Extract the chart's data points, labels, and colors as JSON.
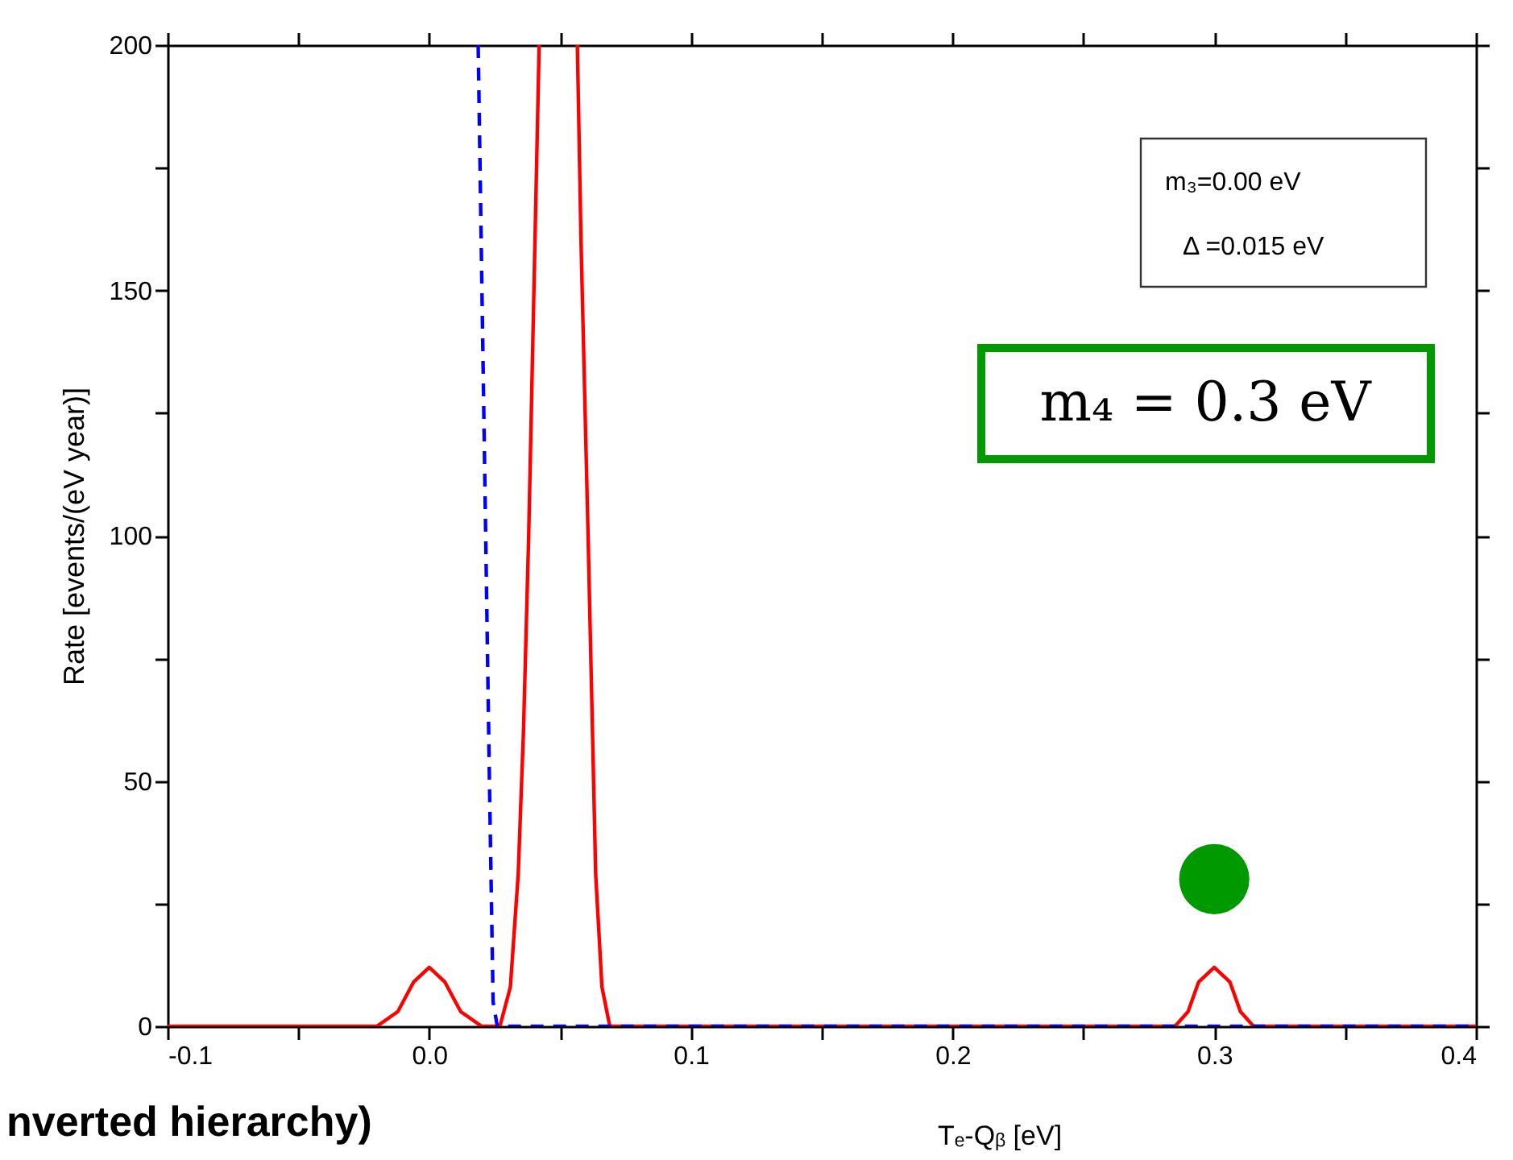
{
  "chart_data": {
    "type": "line",
    "xlabel": "Tₑ-Qᵦ [eV]",
    "ylabel": "Rate [events/(eV year)]",
    "xlim": [
      -0.1,
      0.4
    ],
    "ylim": [
      0,
      200
    ],
    "xticks": [
      {
        "value": -0.1,
        "label": "-0.1"
      },
      {
        "value": -0.05,
        "label": null
      },
      {
        "value": 0,
        "label": "0.0"
      },
      {
        "value": 0.05,
        "label": null
      },
      {
        "value": 0.1,
        "label": "0.1"
      },
      {
        "value": 0.15,
        "label": null
      },
      {
        "value": 0.2,
        "label": "0.2"
      },
      {
        "value": 0.25,
        "label": null
      },
      {
        "value": 0.3,
        "label": "0.3"
      },
      {
        "value": 0.35,
        "label": null
      },
      {
        "value": 0.4,
        "label": "0.4"
      }
    ],
    "yticks": [
      0,
      {
        "value": 25,
        "label": null
      },
      50,
      {
        "value": 75,
        "label": null
      },
      100,
      {
        "value": 125,
        "label": null
      },
      150,
      {
        "value": 175,
        "label": null
      },
      200
    ],
    "grid": false,
    "series": [
      {
        "color": "#ff0000",
        "line_style": "solid",
        "marker": "none",
        "x": [
          -0.1,
          -0.02,
          -0.012,
          -0.006,
          0,
          0.006,
          0.012,
          0.02,
          0.027,
          0.031,
          0.034,
          0.036,
          0.038,
          0.04,
          0.042,
          null,
          0.0566,
          0.058,
          0.0607,
          0.0636,
          0.066,
          0.069,
          0.074,
          0.285,
          0.29,
          0.294,
          0.3,
          0.306,
          0.31,
          0.315,
          0.4
        ],
        "values": [
          0,
          0,
          3,
          9,
          12,
          9,
          3,
          0,
          0,
          8,
          31,
          60,
          100,
          150,
          200,
          null,
          200,
          160,
          100,
          31,
          8,
          0,
          0,
          0,
          3,
          9,
          12,
          9,
          3,
          0,
          0
        ]
      },
      {
        "color": "#0000ff",
        "line_style": "dashed",
        "marker": "none",
        "x": [
          0.0187,
          0.021,
          0.023,
          0.0244,
          0.026,
          0.4
        ],
        "values": [
          200,
          120,
          50,
          5,
          0,
          0
        ]
      },
      {
        "type": "scatter",
        "color": "#009900",
        "marker": "circle",
        "x": [
          0.3
        ],
        "values": [
          30
        ]
      }
    ],
    "annotations": [
      "m₃=0.00 eV",
      "Δ =0.015 eV",
      "m₄ = 0.3 eV",
      "nverted hierarchy)"
    ]
  }
}
